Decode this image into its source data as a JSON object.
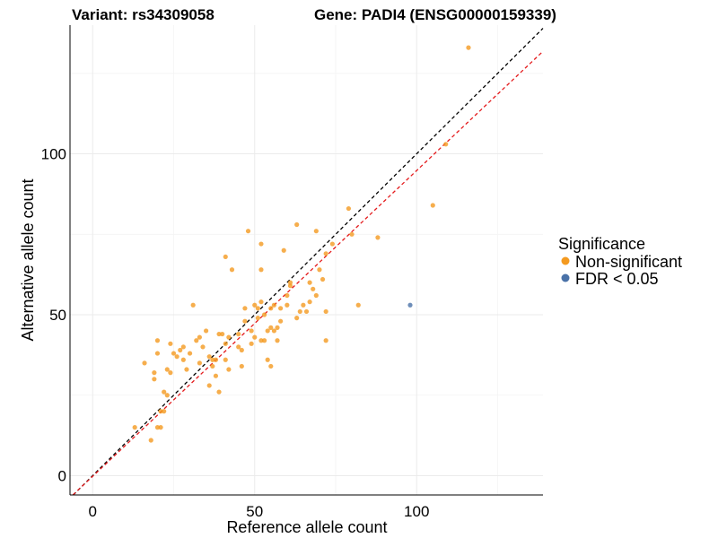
{
  "chart_data": {
    "type": "scatter",
    "title_variant": "Variant: rs34309058",
    "title_gene": "Gene: PADI4 (ENSG00000159339)",
    "xlabel": "Reference allele count",
    "ylabel": "Alternative allele count",
    "xlim": [
      -7,
      139
    ],
    "ylim": [
      -6,
      140
    ],
    "xticks": [
      0,
      50,
      100
    ],
    "yticks": [
      0,
      50,
      100
    ],
    "grid": true,
    "legend": {
      "title": "Significance",
      "position": "right",
      "entries": [
        {
          "label": "Non-significant",
          "color": "#F49A20"
        },
        {
          "label": "FDR < 0.05",
          "color": "#4A72A8"
        }
      ]
    },
    "reference_lines": [
      {
        "kind": "identity",
        "slope": 1,
        "intercept": 0,
        "color": "#000000",
        "style": "dashed"
      },
      {
        "kind": "fit",
        "slope": 0.95,
        "intercept": -0.2,
        "color": "#E41A1C",
        "style": "dashed"
      }
    ],
    "series": [
      {
        "group": "Non-significant",
        "color": "#F49A20",
        "points": [
          [
            116,
            133
          ],
          [
            109,
            103
          ],
          [
            105,
            84
          ],
          [
            88,
            74
          ],
          [
            79,
            83
          ],
          [
            82,
            53
          ],
          [
            80,
            75
          ],
          [
            74,
            72
          ],
          [
            72,
            69
          ],
          [
            71,
            61
          ],
          [
            70,
            64
          ],
          [
            69,
            76
          ],
          [
            69,
            56
          ],
          [
            68,
            58
          ],
          [
            67,
            60
          ],
          [
            67,
            54
          ],
          [
            66,
            51
          ],
          [
            65,
            53
          ],
          [
            64,
            51
          ],
          [
            63,
            49
          ],
          [
            72,
            42
          ],
          [
            72,
            51
          ],
          [
            63,
            78
          ],
          [
            59,
            70
          ],
          [
            60,
            56
          ],
          [
            61,
            59
          ],
          [
            61,
            60
          ],
          [
            60,
            53
          ],
          [
            58,
            52
          ],
          [
            58,
            48
          ],
          [
            57,
            46
          ],
          [
            56,
            45
          ],
          [
            55,
            46
          ],
          [
            54,
            45
          ],
          [
            55,
            52
          ],
          [
            53,
            50
          ],
          [
            53,
            42
          ],
          [
            52,
            42
          ],
          [
            52,
            54
          ],
          [
            52,
            72
          ],
          [
            52,
            64
          ],
          [
            51,
            52
          ],
          [
            51,
            49
          ],
          [
            50,
            53
          ],
          [
            50,
            43
          ],
          [
            49,
            45
          ],
          [
            49,
            41
          ],
          [
            48,
            76
          ],
          [
            47,
            48
          ],
          [
            47,
            52
          ],
          [
            46,
            39
          ],
          [
            46,
            34
          ],
          [
            45,
            40
          ],
          [
            43,
            64
          ],
          [
            41,
            68
          ],
          [
            42,
            43
          ],
          [
            41,
            41
          ],
          [
            41,
            36
          ],
          [
            40,
            44
          ],
          [
            39,
            44
          ],
          [
            39,
            26
          ],
          [
            38,
            36
          ],
          [
            38,
            31
          ],
          [
            37,
            36
          ],
          [
            37,
            34
          ],
          [
            36,
            28
          ],
          [
            36,
            37
          ],
          [
            35,
            45
          ],
          [
            34,
            40
          ],
          [
            33,
            35
          ],
          [
            33,
            43
          ],
          [
            31,
            53
          ],
          [
            30,
            38
          ],
          [
            29,
            33
          ],
          [
            28,
            36
          ],
          [
            28,
            40
          ],
          [
            27,
            39
          ],
          [
            26,
            37
          ],
          [
            25,
            38
          ],
          [
            24,
            41
          ],
          [
            24,
            32
          ],
          [
            23,
            33
          ],
          [
            23,
            25
          ],
          [
            22,
            26
          ],
          [
            21,
            20
          ],
          [
            21,
            15
          ],
          [
            20,
            15
          ],
          [
            20,
            42
          ],
          [
            20,
            38
          ],
          [
            19,
            32
          ],
          [
            19,
            30
          ],
          [
            18,
            11
          ],
          [
            16,
            35
          ],
          [
            13,
            15
          ],
          [
            56,
            53
          ],
          [
            54,
            36
          ],
          [
            55,
            34
          ],
          [
            57,
            42
          ],
          [
            45,
            44
          ],
          [
            42,
            33
          ],
          [
            32,
            42
          ],
          [
            22,
            20
          ]
        ]
      },
      {
        "group": "FDR < 0.05",
        "color": "#4A72A8",
        "points": [
          [
            98,
            53
          ]
        ]
      }
    ]
  }
}
